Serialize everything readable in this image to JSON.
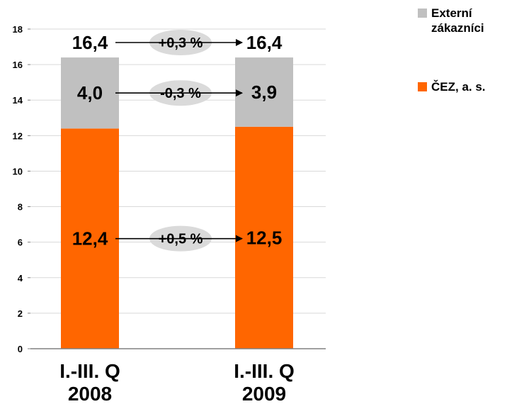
{
  "chart_data": {
    "type": "bar",
    "stacked": true,
    "categories": [
      "I.-III. Q\n2008",
      "I.-III. Q\n2009"
    ],
    "series": [
      {
        "name": "ČEZ, a. s.",
        "color": "#ff6600",
        "values": [
          12.4,
          12.5
        ],
        "labels": [
          "12,4",
          "12,5"
        ]
      },
      {
        "name": "Externí zákazníci",
        "color": "#c0c0c0",
        "values": [
          4.0,
          3.9
        ],
        "labels": [
          "4,0",
          "3,9"
        ]
      }
    ],
    "totals": {
      "values": [
        16.4,
        16.4
      ],
      "labels": [
        "16,4",
        "16,4"
      ]
    },
    "changes": [
      {
        "target": "total",
        "label": "+0,3 %"
      },
      {
        "target": "Externí zákazníci",
        "label": "-0,3 %"
      },
      {
        "target": "ČEZ, a. s.",
        "label": "+0,5 %"
      }
    ],
    "ylim": [
      0,
      18
    ],
    "yticks": [
      0,
      2,
      4,
      6,
      8,
      10,
      12,
      14,
      16,
      18
    ],
    "grid": true,
    "legend": "right"
  }
}
